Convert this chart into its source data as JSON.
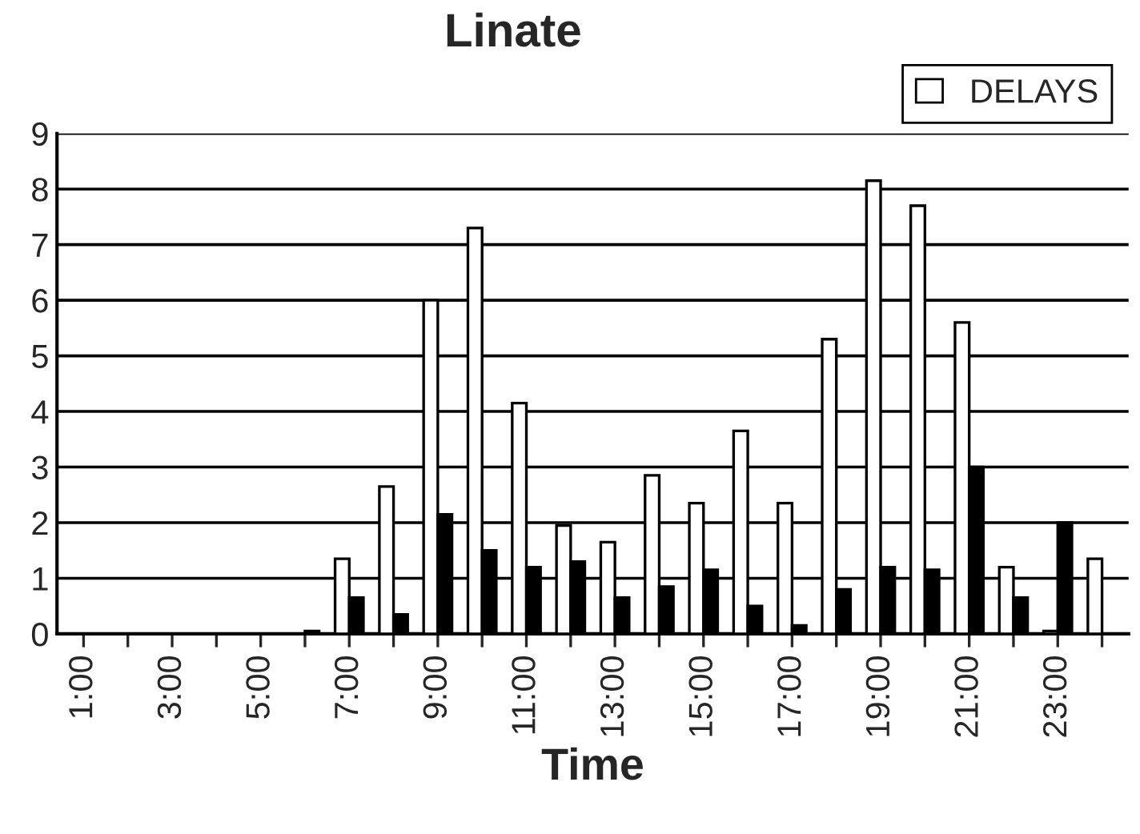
{
  "chart_data": {
    "type": "bar",
    "title": "Linate",
    "xlabel": "Time",
    "categories": [
      "1:00",
      null,
      "3:00",
      null,
      "5:00",
      null,
      "7:00",
      null,
      "9:00",
      null,
      "11:00",
      null,
      "13:00",
      null,
      "15:00",
      null,
      "17:00",
      null,
      "19:00",
      null,
      "21:00",
      null,
      "23:00",
      null
    ],
    "series": [
      {
        "name": "DELAYS",
        "color": "#ffffff",
        "values": [
          0,
          0,
          0,
          0,
          0,
          0,
          1.35,
          2.65,
          6.0,
          7.3,
          4.15,
          1.95,
          1.65,
          2.85,
          2.35,
          3.65,
          2.35,
          5.3,
          8.15,
          7.7,
          5.6,
          1.2,
          0.05,
          1.35
        ]
      },
      {
        "color": "#000000",
        "values": [
          0,
          0,
          0,
          0,
          0,
          0.05,
          0.65,
          0.35,
          2.15,
          1.5,
          1.2,
          1.3,
          0.65,
          0.85,
          1.15,
          0.5,
          0.15,
          0.8,
          1.2,
          1.15,
          3.0,
          0.65,
          2.0,
          0
        ]
      }
    ],
    "ylim": [
      0,
      9
    ],
    "yticks": [
      0,
      1,
      2,
      3,
      4,
      5,
      6,
      7,
      8,
      9
    ],
    "grid": "y",
    "legend": "top right"
  }
}
